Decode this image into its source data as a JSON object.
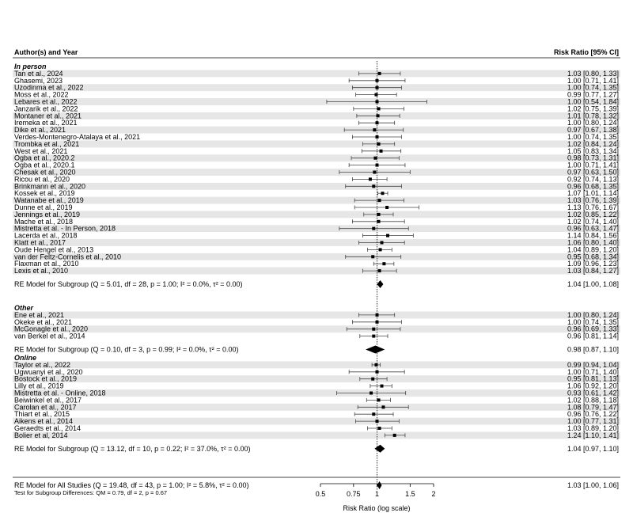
{
  "chart_data": {
    "type": "forest",
    "header_left": "Author(s) and Year",
    "header_right": "Risk Ratio [95% CI]",
    "xlabel": "Risk Ratio (log scale)",
    "xticks": [
      0.5,
      0.75,
      1,
      1.5,
      2
    ],
    "xtick_labels": [
      "0.5",
      "0.75",
      "1",
      "1.5",
      "2"
    ],
    "xlim": [
      0.5,
      2
    ],
    "reference_line": 1,
    "groups": [
      {
        "name": "In person",
        "studies": [
          {
            "label": "Tan et al., 2024",
            "rr": 1.03,
            "lo": 0.8,
            "hi": 1.33,
            "text": "1.03 [0.80, 1.33]"
          },
          {
            "label": "Ghasemi, 2023",
            "rr": 1.0,
            "lo": 0.71,
            "hi": 1.41,
            "text": "1.00 [0.71, 1.41]"
          },
          {
            "label": "Uzodinma et al., 2022",
            "rr": 1.0,
            "lo": 0.74,
            "hi": 1.35,
            "text": "1.00 [0.74, 1.35]"
          },
          {
            "label": "Moss et al., 2022",
            "rr": 0.99,
            "lo": 0.77,
            "hi": 1.27,
            "text": "0.99 [0.77, 1.27]"
          },
          {
            "label": "Lebares et al., 2022",
            "rr": 1.0,
            "lo": 0.54,
            "hi": 1.84,
            "text": "1.00 [0.54, 1.84]"
          },
          {
            "label": "Janzarik et al., 2022",
            "rr": 1.02,
            "lo": 0.75,
            "hi": 1.39,
            "text": "1.02 [0.75, 1.39]"
          },
          {
            "label": "Montaner et al., 2021",
            "rr": 1.01,
            "lo": 0.78,
            "hi": 1.32,
            "text": "1.01 [0.78, 1.32]"
          },
          {
            "label": "Iremeka et al., 2021",
            "rr": 1.0,
            "lo": 0.8,
            "hi": 1.24,
            "text": "1.00 [0.80, 1.24]"
          },
          {
            "label": "Dike et al., 2021",
            "rr": 0.97,
            "lo": 0.67,
            "hi": 1.38,
            "text": "0.97 [0.67, 1.38]"
          },
          {
            "label": "Verdes-Montenegro-Atalaya et al., 2021",
            "rr": 1.0,
            "lo": 0.74,
            "hi": 1.35,
            "text": "1.00 [0.74, 1.35]"
          },
          {
            "label": "Trombka et al., 2021",
            "rr": 1.02,
            "lo": 0.84,
            "hi": 1.24,
            "text": "1.02 [0.84, 1.24]"
          },
          {
            "label": "West et al., 2021",
            "rr": 1.05,
            "lo": 0.83,
            "hi": 1.34,
            "text": "1.05 [0.83, 1.34]"
          },
          {
            "label": "Ogba et al., 2020.2",
            "rr": 0.98,
            "lo": 0.73,
            "hi": 1.31,
            "text": "0.98 [0.73, 1.31]"
          },
          {
            "label": "Ogba et al., 2020.1",
            "rr": 1.0,
            "lo": 0.71,
            "hi": 1.41,
            "text": "1.00 [0.71, 1.41]"
          },
          {
            "label": "Chesak et al., 2020",
            "rr": 0.97,
            "lo": 0.63,
            "hi": 1.5,
            "text": "0.97 [0.63, 1.50]"
          },
          {
            "label": "Ricou et al., 2020",
            "rr": 0.92,
            "lo": 0.74,
            "hi": 1.13,
            "text": "0.92 [0.74, 1.13]"
          },
          {
            "label": "Brinkmann et al., 2020",
            "rr": 0.96,
            "lo": 0.68,
            "hi": 1.35,
            "text": "0.96 [0.68, 1.35]"
          },
          {
            "label": "Kossek et al., 2019",
            "rr": 1.07,
            "lo": 1.01,
            "hi": 1.14,
            "text": "1.07 [1.01, 1.14]"
          },
          {
            "label": "Watanabe et al., 2019",
            "rr": 1.03,
            "lo": 0.76,
            "hi": 1.39,
            "text": "1.03 [0.76, 1.39]"
          },
          {
            "label": "Dunne et al., 2019",
            "rr": 1.13,
            "lo": 0.76,
            "hi": 1.67,
            "text": "1.13 [0.76, 1.67]"
          },
          {
            "label": "Jennings et al., 2019",
            "rr": 1.02,
            "lo": 0.85,
            "hi": 1.22,
            "text": "1.02 [0.85, 1.22]"
          },
          {
            "label": "Mache et al., 2018",
            "rr": 1.02,
            "lo": 0.74,
            "hi": 1.4,
            "text": "1.02 [0.74, 1.40]"
          },
          {
            "label": "Mistretta et al. - In Person, 2018",
            "rr": 0.96,
            "lo": 0.63,
            "hi": 1.47,
            "text": "0.96 [0.63, 1.47]"
          },
          {
            "label": "Lacerda et al., 2018",
            "rr": 1.14,
            "lo": 0.84,
            "hi": 1.56,
            "text": "1.14 [0.84, 1.56]"
          },
          {
            "label": "Klatt et al., 2017",
            "rr": 1.06,
            "lo": 0.8,
            "hi": 1.4,
            "text": "1.06 [0.80, 1.40]"
          },
          {
            "label": "Oude Hengel et al., 2013",
            "rr": 1.04,
            "lo": 0.89,
            "hi": 1.2,
            "text": "1.04 [0.89, 1.20]"
          },
          {
            "label": "van der Feltz-Cornelis et al., 2010",
            "rr": 0.95,
            "lo": 0.68,
            "hi": 1.34,
            "text": "0.95 [0.68, 1.34]"
          },
          {
            "label": "Flaxman et al., 2010",
            "rr": 1.09,
            "lo": 0.96,
            "hi": 1.23,
            "text": "1.09 [0.96, 1.23]"
          },
          {
            "label": "Lexis et al., 2010",
            "rr": 1.03,
            "lo": 0.84,
            "hi": 1.27,
            "text": "1.03 [0.84, 1.27]"
          }
        ],
        "summary": {
          "label": "RE Model for Subgroup (Q = 5.01, df = 28, p = 1.00; I² = 0.0%, τ² = 0.00)",
          "rr": 1.04,
          "lo": 1.0,
          "hi": 1.08,
          "text": "1.04 [1.00, 1.08]"
        }
      },
      {
        "name": "Other",
        "studies": [
          {
            "label": "Ene et al., 2021",
            "rr": 1.0,
            "lo": 0.8,
            "hi": 1.24,
            "text": "1.00 [0.80, 1.24]"
          },
          {
            "label": "Okeke et al., 2021",
            "rr": 1.0,
            "lo": 0.74,
            "hi": 1.35,
            "text": "1.00 [0.74, 1.35]"
          },
          {
            "label": "McGonagle et al., 2020",
            "rr": 0.96,
            "lo": 0.69,
            "hi": 1.33,
            "text": "0.96 [0.69, 1.33]"
          },
          {
            "label": "van Berkel et al., 2014",
            "rr": 0.96,
            "lo": 0.81,
            "hi": 1.14,
            "text": "0.96 [0.81, 1.14]"
          }
        ],
        "summary": {
          "label": "RE Model for Subgroup (Q = 0.10, df = 3, p = 0.99; I² = 0.0%, τ² = 0.00)",
          "rr": 0.98,
          "lo": 0.87,
          "hi": 1.1,
          "text": "0.98 [0.87, 1.10]"
        }
      },
      {
        "name": "Online",
        "studies": [
          {
            "label": "Taylor et al., 2022",
            "rr": 0.99,
            "lo": 0.94,
            "hi": 1.04,
            "text": "0.99 [0.94, 1.04]"
          },
          {
            "label": "Ugwuanyi et al., 2020",
            "rr": 1.0,
            "lo": 0.71,
            "hi": 1.4,
            "text": "1.00 [0.71, 1.40]"
          },
          {
            "label": "Bostock et al., 2019",
            "rr": 0.95,
            "lo": 0.81,
            "hi": 1.13,
            "text": "0.95 [0.81, 1.13]"
          },
          {
            "label": "Lilly et al., 2019",
            "rr": 1.06,
            "lo": 0.92,
            "hi": 1.2,
            "text": "1.06 [0.92, 1.20]"
          },
          {
            "label": "Mistretta et al. - Online, 2018",
            "rr": 0.93,
            "lo": 0.61,
            "hi": 1.42,
            "text": "0.93 [0.61, 1.42]"
          },
          {
            "label": "Beiwinkel et al., 2017",
            "rr": 1.02,
            "lo": 0.88,
            "hi": 1.18,
            "text": "1.02 [0.88, 1.18]"
          },
          {
            "label": "Carolan et al., 2017",
            "rr": 1.08,
            "lo": 0.79,
            "hi": 1.47,
            "text": "1.08 [0.79, 1.47]"
          },
          {
            "label": "Thiart et al., 2015",
            "rr": 0.96,
            "lo": 0.76,
            "hi": 1.22,
            "text": "0.96 [0.76, 1.22]"
          },
          {
            "label": "Aikens et al., 2014",
            "rr": 1.0,
            "lo": 0.77,
            "hi": 1.31,
            "text": "1.00 [0.77, 1.31]"
          },
          {
            "label": "Geraedts et al., 2014",
            "rr": 1.03,
            "lo": 0.89,
            "hi": 1.2,
            "text": "1.03 [0.89, 1.20]"
          },
          {
            "label": "Bolier et al, 2014",
            "rr": 1.24,
            "lo": 1.1,
            "hi": 1.41,
            "text": "1.24 [1.10, 1.41]"
          }
        ],
        "summary": {
          "label": "RE Model for Subgroup (Q = 13.12, df = 10, p = 0.22; I² = 37.0%, τ² = 0.00)",
          "rr": 1.04,
          "lo": 0.97,
          "hi": 1.1,
          "text": "1.04 [0.97, 1.10]"
        }
      }
    ],
    "overall": {
      "label": "RE Model for All Studies (Q = 19.48, df = 43, p = 1.00; I² = 5.8%, τ² = 0.00)",
      "rr": 1.03,
      "lo": 1.0,
      "hi": 1.06,
      "text": "1.03 [1.00, 1.06]"
    },
    "subgroup_test": "Test for Subgroup Differences: QM = 0.79, df = 2, p = 0.67"
  }
}
